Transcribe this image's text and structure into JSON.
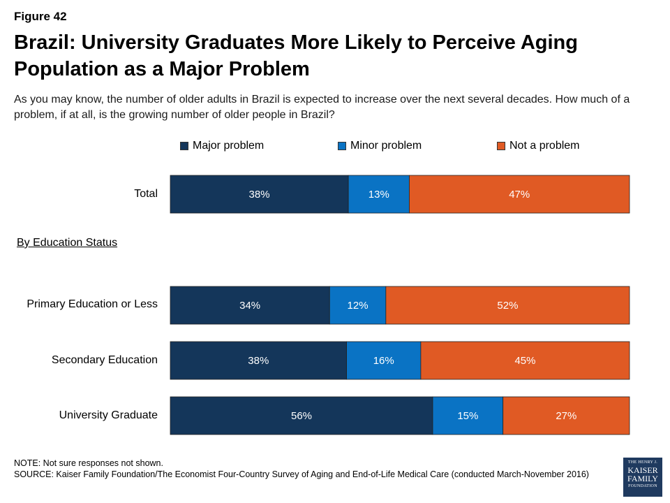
{
  "figure_label": "Figure 42",
  "title": "Brazil: University Graduates More Likely to Perceive Aging Population as a Major Problem",
  "subtitle": "As you may know, the number of older adults in Brazil is expected to increase over the next several decades. How much of a problem, if at all, is the growing number of older people in Brazil?",
  "section_label": "By Education Status",
  "note": "NOTE: Not sure responses not shown.",
  "source": "SOURCE: Kaiser Family Foundation/The Economist Four-Country Survey of Aging and End-of-Life Medical Care (conducted March-November 2016)",
  "logo": {
    "line1": "THE HENRY J.",
    "line2": "KAISER",
    "line3": "FAMILY",
    "line4": "FOUNDATION"
  },
  "colors": {
    "major": "#14365a",
    "minor": "#0a73c4",
    "not": "#e05a24"
  },
  "chart_data": {
    "type": "bar",
    "orientation": "horizontal",
    "stacked": true,
    "categories": [
      "Total",
      "Primary Education or Less",
      "Secondary Education",
      "University Graduate"
    ],
    "series": [
      {
        "name": "Major problem",
        "values": [
          38,
          34,
          38,
          56
        ],
        "labels": [
          "38%",
          "34%",
          "38%",
          "56%"
        ]
      },
      {
        "name": "Minor problem",
        "values": [
          13,
          12,
          16,
          15
        ],
        "labels": [
          "13%",
          "12%",
          "16%",
          "15%"
        ]
      },
      {
        "name": "Not a problem",
        "values": [
          47,
          52,
          45,
          27
        ],
        "labels": [
          "47%",
          "52%",
          "45%",
          "27%"
        ]
      }
    ],
    "xlim": [
      0,
      100
    ],
    "legend_position": "top"
  }
}
